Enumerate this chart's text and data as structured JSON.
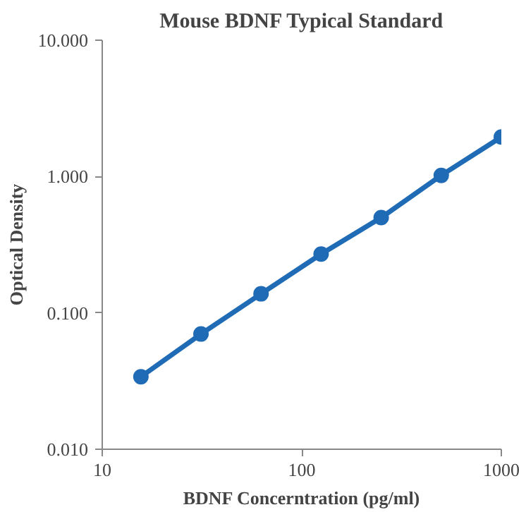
{
  "chart_data": {
    "type": "line",
    "title": "Mouse BDNF Typical Standard",
    "xlabel": "BDNF Concerntration (pg/ml)",
    "ylabel": "Optical Density",
    "x": [
      15.625,
      31.25,
      62.5,
      125,
      250,
      500,
      1000
    ],
    "series": [
      {
        "color": "#1f6bb5",
        "values": [
          0.034,
          0.07,
          0.138,
          0.27,
          0.5,
          1.02,
          1.95
        ]
      }
    ],
    "log": "xy",
    "xlim": [
      10,
      1000
    ],
    "ylim": [
      0.01,
      10
    ],
    "xticks": [
      10,
      100,
      1000
    ],
    "yticks": [
      {
        "value": 0.01,
        "label": "0.010"
      },
      {
        "value": 0.1,
        "label": "0.100"
      },
      {
        "value": 1,
        "label": "1.000"
      },
      {
        "value": 10,
        "label": "10.000"
      }
    ],
    "grid": false,
    "marker": "circle",
    "line_style": "solid"
  }
}
